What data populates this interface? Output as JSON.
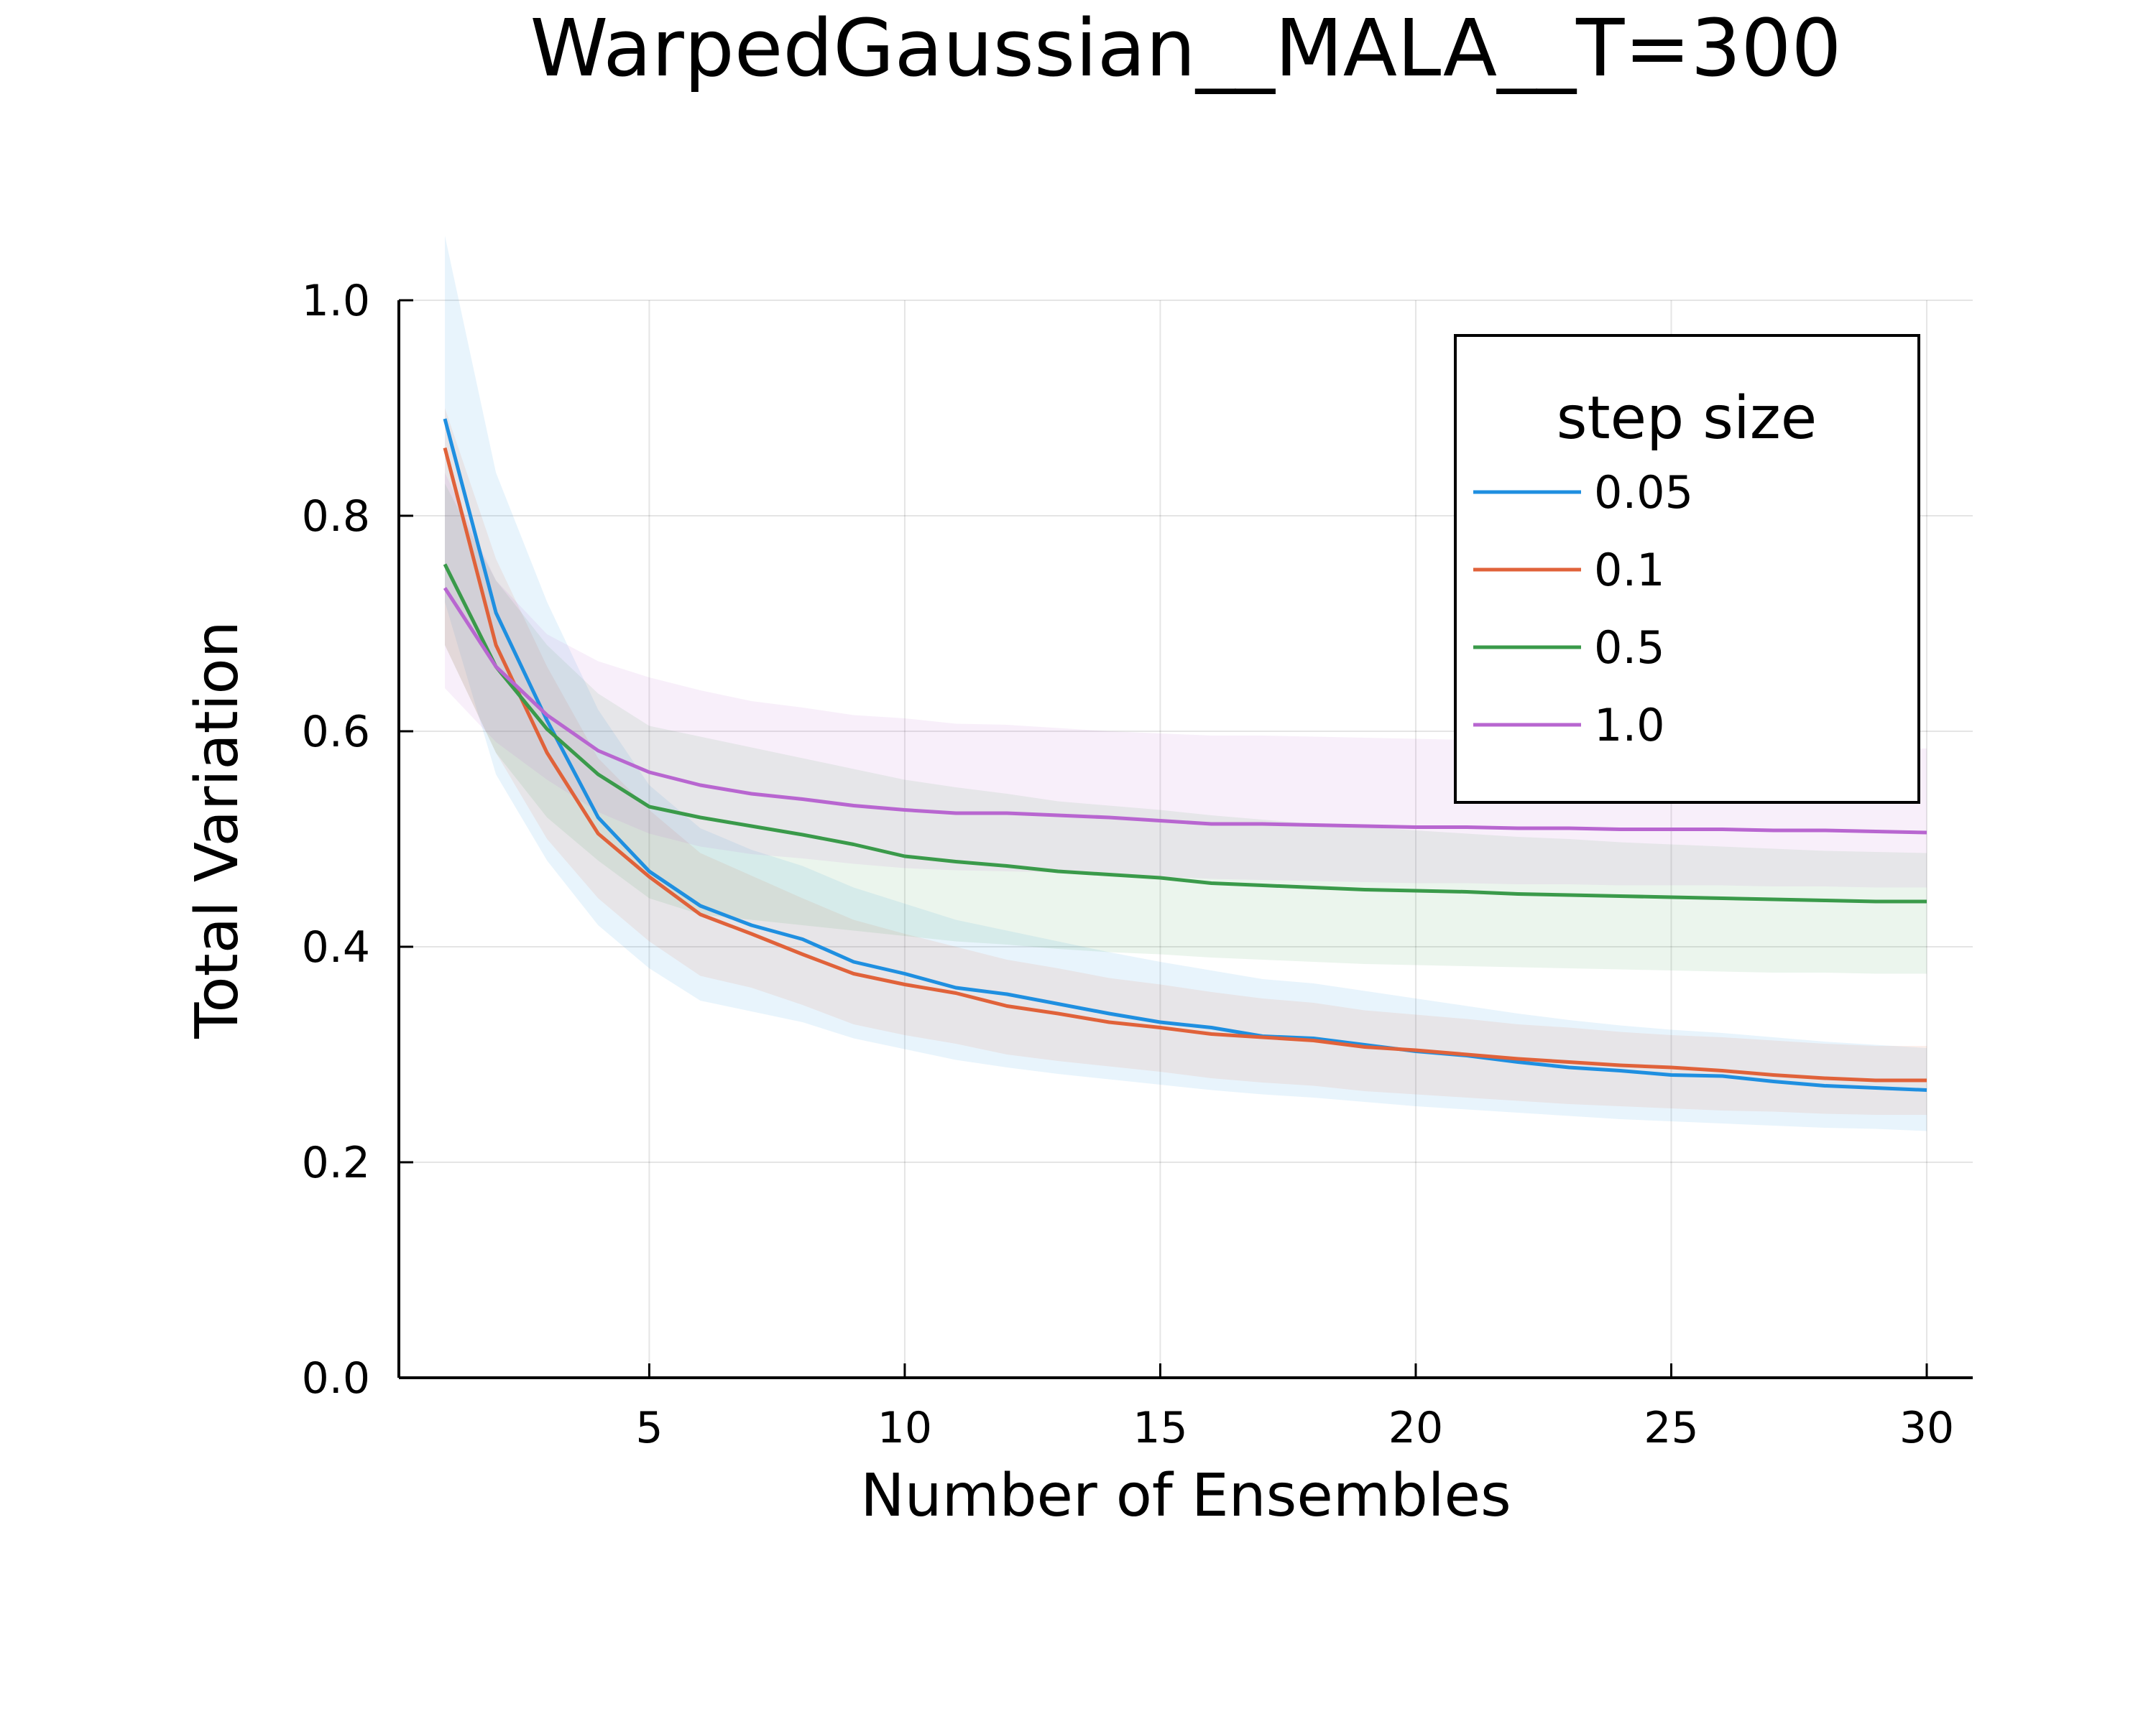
{
  "chart_data": {
    "type": "line",
    "title": "WarpedGaussian__MALA__T=300",
    "xlabel": "Number of Ensembles",
    "ylabel": "Total Variation",
    "xlim": [
      0.1,
      30.9
    ],
    "ylim": [
      0,
      1.0
    ],
    "xticks": [
      5,
      10,
      15,
      20,
      25,
      30
    ],
    "yticks": [
      0.0,
      0.2,
      0.4,
      0.6,
      0.8,
      1.0
    ],
    "grid": true,
    "legend": {
      "title": "step size",
      "position": "top-right"
    },
    "x": [
      1,
      2,
      3,
      4,
      5,
      6,
      7,
      8,
      9,
      10,
      11,
      12,
      13,
      14,
      15,
      16,
      17,
      18,
      19,
      20,
      21,
      22,
      23,
      24,
      25,
      26,
      27,
      28,
      29,
      30
    ],
    "series": [
      {
        "name": "0.05",
        "color": "#1f8fe0",
        "values": [
          0.89,
          0.71,
          0.61,
          0.52,
          0.47,
          0.438,
          0.42,
          0.407,
          0.386,
          0.375,
          0.362,
          0.356,
          0.347,
          0.338,
          0.33,
          0.325,
          0.317,
          0.315,
          0.309,
          0.303,
          0.299,
          0.293,
          0.288,
          0.285,
          0.281,
          0.28,
          0.275,
          0.271,
          0.269,
          0.267
        ],
        "lower": [
          0.72,
          0.56,
          0.48,
          0.42,
          0.38,
          0.35,
          0.34,
          0.33,
          0.315,
          0.305,
          0.295,
          0.288,
          0.282,
          0.277,
          0.272,
          0.267,
          0.263,
          0.26,
          0.256,
          0.252,
          0.249,
          0.246,
          0.243,
          0.24,
          0.238,
          0.236,
          0.234,
          0.232,
          0.231,
          0.229
        ],
        "upper": [
          1.06,
          0.84,
          0.72,
          0.62,
          0.55,
          0.51,
          0.49,
          0.475,
          0.455,
          0.44,
          0.425,
          0.415,
          0.405,
          0.395,
          0.386,
          0.378,
          0.37,
          0.366,
          0.359,
          0.352,
          0.345,
          0.338,
          0.332,
          0.327,
          0.323,
          0.32,
          0.316,
          0.312,
          0.309,
          0.306
        ]
      },
      {
        "name": "0.1",
        "color": "#e0623a",
        "values": [
          0.863,
          0.68,
          0.58,
          0.505,
          0.465,
          0.43,
          0.412,
          0.393,
          0.375,
          0.365,
          0.357,
          0.345,
          0.338,
          0.33,
          0.325,
          0.319,
          0.316,
          0.313,
          0.307,
          0.304,
          0.3,
          0.296,
          0.293,
          0.29,
          0.288,
          0.285,
          0.281,
          0.278,
          0.276,
          0.276
        ],
        "lower": [
          0.68,
          0.58,
          0.5,
          0.445,
          0.405,
          0.373,
          0.362,
          0.346,
          0.328,
          0.318,
          0.31,
          0.3,
          0.294,
          0.289,
          0.284,
          0.278,
          0.274,
          0.271,
          0.266,
          0.263,
          0.26,
          0.257,
          0.254,
          0.252,
          0.25,
          0.248,
          0.247,
          0.245,
          0.244,
          0.244
        ],
        "upper": [
          0.9,
          0.76,
          0.66,
          0.575,
          0.527,
          0.487,
          0.466,
          0.445,
          0.425,
          0.412,
          0.4,
          0.388,
          0.38,
          0.371,
          0.365,
          0.358,
          0.352,
          0.348,
          0.341,
          0.337,
          0.333,
          0.328,
          0.325,
          0.321,
          0.318,
          0.316,
          0.313,
          0.31,
          0.308,
          0.308
        ]
      },
      {
        "name": "0.5",
        "color": "#3a9a4a",
        "values": [
          0.755,
          0.66,
          0.602,
          0.56,
          0.53,
          0.52,
          0.512,
          0.504,
          0.495,
          0.484,
          0.479,
          0.475,
          0.47,
          0.467,
          0.464,
          0.459,
          0.457,
          0.455,
          0.453,
          0.452,
          0.451,
          0.449,
          0.448,
          0.447,
          0.446,
          0.445,
          0.444,
          0.443,
          0.442,
          0.442
        ],
        "lower": [
          0.68,
          0.58,
          0.52,
          0.48,
          0.445,
          0.43,
          0.425,
          0.42,
          0.415,
          0.41,
          0.405,
          0.402,
          0.398,
          0.395,
          0.393,
          0.39,
          0.388,
          0.386,
          0.384,
          0.383,
          0.382,
          0.381,
          0.38,
          0.379,
          0.378,
          0.377,
          0.376,
          0.376,
          0.375,
          0.375
        ],
        "upper": [
          0.83,
          0.74,
          0.68,
          0.635,
          0.605,
          0.595,
          0.585,
          0.575,
          0.565,
          0.555,
          0.548,
          0.542,
          0.535,
          0.531,
          0.527,
          0.522,
          0.518,
          0.514,
          0.511,
          0.508,
          0.505,
          0.502,
          0.5,
          0.497,
          0.495,
          0.493,
          0.491,
          0.489,
          0.488,
          0.487
        ]
      },
      {
        "name": "1.0",
        "color": "#b866d0",
        "values": [
          0.733,
          0.66,
          0.615,
          0.582,
          0.562,
          0.55,
          0.542,
          0.537,
          0.531,
          0.527,
          0.524,
          0.524,
          0.522,
          0.52,
          0.517,
          0.514,
          0.514,
          0.513,
          0.512,
          0.511,
          0.511,
          0.51,
          0.51,
          0.509,
          0.509,
          0.509,
          0.508,
          0.508,
          0.507,
          0.506
        ],
        "lower": [
          0.64,
          0.59,
          0.555,
          0.525,
          0.505,
          0.493,
          0.486,
          0.482,
          0.477,
          0.473,
          0.471,
          0.47,
          0.469,
          0.467,
          0.465,
          0.463,
          0.462,
          0.461,
          0.46,
          0.459,
          0.459,
          0.458,
          0.458,
          0.457,
          0.457,
          0.457,
          0.456,
          0.456,
          0.455,
          0.455
        ],
        "upper": [
          0.84,
          0.74,
          0.69,
          0.665,
          0.65,
          0.638,
          0.628,
          0.622,
          0.615,
          0.612,
          0.607,
          0.606,
          0.603,
          0.6,
          0.598,
          0.596,
          0.596,
          0.595,
          0.594,
          0.593,
          0.592,
          0.591,
          0.59,
          0.589,
          0.588,
          0.587,
          0.586,
          0.585,
          0.584,
          0.584
        ]
      }
    ]
  }
}
